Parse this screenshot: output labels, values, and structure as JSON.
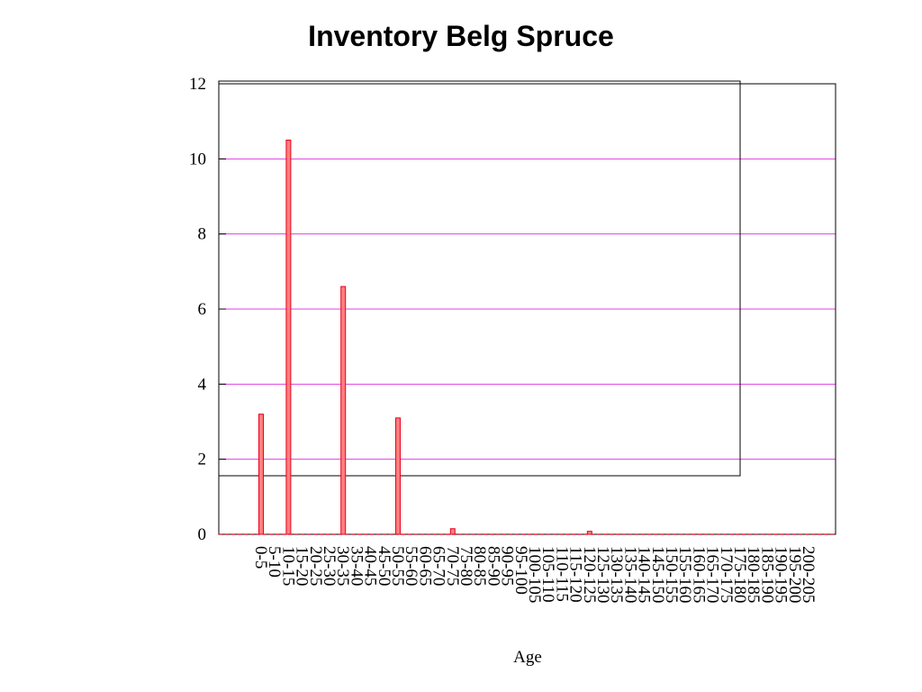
{
  "chart_data": {
    "type": "bar",
    "title": "Inventory Belg Spruce",
    "xlabel": "Age",
    "ylabel": "",
    "ylim": [
      0,
      12
    ],
    "yticks": [
      0,
      2,
      4,
      6,
      8,
      10,
      12
    ],
    "grid": true,
    "colors": {
      "bar_fill": "#ff7f7f",
      "bar_stroke": "#e8001f",
      "grid": "#e040e0",
      "frame": "#000000"
    },
    "categories": [
      "0-5",
      "5-10",
      "10-15",
      "15-20",
      "20-25",
      "25-30",
      "30-35",
      "35-40",
      "40-45",
      "45-50",
      "50-55",
      "55-60",
      "60-65",
      "65-70",
      "70-75",
      "75-80",
      "80-85",
      "85-90",
      "90-95",
      "95-100",
      "100-105",
      "105-110",
      "110-115",
      "115-120",
      "120-125",
      "125-130",
      "130-135",
      "135-140",
      "140-145",
      "145-150",
      "150-155",
      "155-160",
      "160-165",
      "165-170",
      "170-175",
      "175-180",
      "180-185",
      "185-190",
      "190-195",
      "195-200",
      "200-205"
    ],
    "values": [
      3.2,
      0,
      10.5,
      0,
      0,
      0,
      6.6,
      0,
      0,
      0,
      3.1,
      0,
      0,
      0,
      0.15,
      0,
      0,
      0,
      0,
      0,
      0,
      0,
      0,
      0,
      0.08,
      0,
      0,
      0,
      0,
      0,
      0,
      0,
      0,
      0,
      0,
      0,
      0,
      0,
      0,
      0,
      0
    ]
  }
}
